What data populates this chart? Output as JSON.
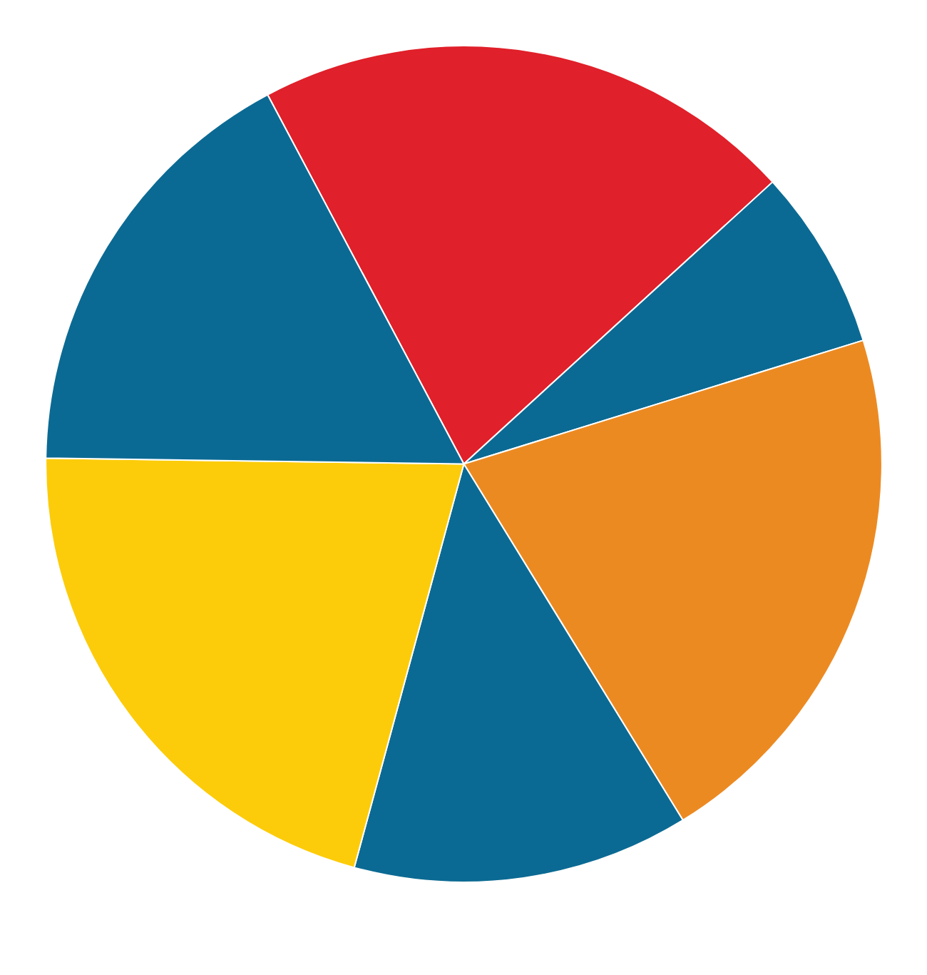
{
  "chart_data": {
    "type": "pie",
    "categories": [
      null,
      null,
      null,
      null,
      null,
      null
    ],
    "values": [
      21,
      7,
      21,
      13,
      21,
      17
    ],
    "colors": [
      "#e0202a",
      "#0b6a93",
      "#ec8a22",
      "#0b6a93",
      "#fccc0a",
      "#0b6a93"
    ]
  }
}
